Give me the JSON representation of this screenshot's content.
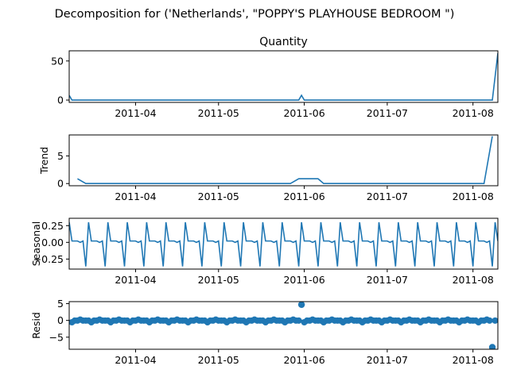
{
  "figure": {
    "suptitle": "Decomposition for ('Netherlands', \"POPPY'S PLAYHOUSE BEDROOM \")"
  },
  "colors": {
    "line": "#1f77b4",
    "axes": "#000000",
    "background": "#ffffff"
  },
  "chart_data": [
    {
      "type": "line",
      "title": "Quantity",
      "ylabel": "",
      "x_range": [
        "2011-03-08",
        "2011-08-10"
      ],
      "x_ticks": [
        "2011-04",
        "2011-05",
        "2011-06",
        "2011-07",
        "2011-08"
      ],
      "y_ticks": [
        "0",
        "50"
      ],
      "ylim": [
        -3,
        63
      ],
      "series": [
        {
          "name": "",
          "points": [
            [
              "2011-03-08",
              6
            ],
            [
              "2011-03-09",
              0
            ],
            [
              "2011-05-30",
              0
            ],
            [
              "2011-05-31",
              6
            ],
            [
              "2011-06-01",
              0
            ],
            [
              "2011-08-08",
              0
            ],
            [
              "2011-08-10",
              60
            ]
          ]
        }
      ]
    },
    {
      "type": "line",
      "title": "",
      "ylabel": "Trend",
      "x_range": [
        "2011-03-08",
        "2011-08-10"
      ],
      "x_ticks": [
        "2011-04",
        "2011-05",
        "2011-06",
        "2011-07",
        "2011-08"
      ],
      "y_ticks": [
        "0",
        "5"
      ],
      "ylim": [
        -0.4,
        8.8
      ],
      "series": [
        {
          "name": "",
          "points": [
            [
              "2011-03-11",
              0.86
            ],
            [
              "2011-03-14",
              0
            ],
            [
              "2011-05-27",
              0
            ],
            [
              "2011-05-30",
              0.86
            ],
            [
              "2011-06-06",
              0.86
            ],
            [
              "2011-06-08",
              0
            ],
            [
              "2011-08-05",
              0
            ],
            [
              "2011-08-08",
              8.57
            ]
          ]
        }
      ]
    },
    {
      "type": "line",
      "title": "",
      "ylabel": "Seasonal",
      "x_range": [
        "2011-03-08",
        "2011-08-10"
      ],
      "x_ticks": [
        "2011-04",
        "2011-05",
        "2011-06",
        "2011-07",
        "2011-08"
      ],
      "y_ticks": [
        "0.25",
        "0.00",
        "−0.25"
      ],
      "ylim": [
        -0.4,
        0.36
      ],
      "period_days": 7,
      "weekly_pattern": [
        0.3,
        0.02,
        0.02,
        0.02,
        0.0,
        0.02,
        -0.36
      ]
    },
    {
      "type": "scatter",
      "title": "",
      "ylabel": "Resid",
      "x_range": [
        "2011-03-08",
        "2011-08-10"
      ],
      "x_ticks": [
        "2011-04",
        "2011-05",
        "2011-06",
        "2011-07",
        "2011-08"
      ],
      "y_ticks": [
        "5",
        "0",
        "−5"
      ],
      "ylim": [
        -8.6,
        5.6
      ],
      "baseline": 0,
      "outliers": [
        {
          "date": "2011-05-31",
          "value": 4.7
        },
        {
          "date": "2011-08-08",
          "value": -8.0
        }
      ],
      "points": []
    }
  ]
}
